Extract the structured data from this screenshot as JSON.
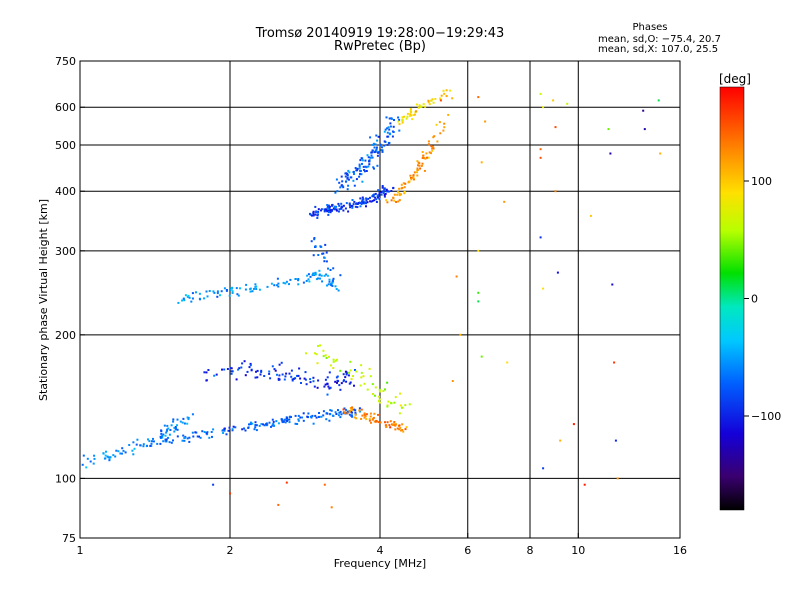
{
  "title_line1": "Tromsø 20140919 19:28:00−19:29:43",
  "title_line2": "RwPretec (Bp)",
  "legend": {
    "title": "Phases",
    "line1": "mean, sd,O: −75.4, 20.7",
    "line2": "mean, sd,X: 107.0, 25.5"
  },
  "colorbar": {
    "label": "[deg]",
    "ticks": [
      {
        "value": 100,
        "label": "100"
      },
      {
        "value": 0,
        "label": "0"
      },
      {
        "value": -100,
        "label": "−100"
      }
    ],
    "range": [
      -180,
      180
    ]
  },
  "chart_data": {
    "type": "scatter",
    "xlabel": "Frequency [MHz]",
    "ylabel": "Stationary phase Virtual Height [km]",
    "xscale": "log",
    "yscale": "log",
    "xlim": [
      1,
      16
    ],
    "ylim": [
      75,
      750
    ],
    "xticks": [
      {
        "value": 1,
        "label": "1"
      },
      {
        "value": 2,
        "label": "2"
      },
      {
        "value": 4,
        "label": "4"
      },
      {
        "value": 6,
        "label": "6"
      },
      {
        "value": 8,
        "label": "8"
      },
      {
        "value": 10,
        "label": "10"
      },
      {
        "value": 16,
        "label": "16"
      }
    ],
    "yticks": [
      {
        "value": 75,
        "label": "75"
      },
      {
        "value": 100,
        "label": "100"
      },
      {
        "value": 200,
        "label": "200"
      },
      {
        "value": 300,
        "label": "300"
      },
      {
        "value": 400,
        "label": "400"
      },
      {
        "value": 500,
        "label": "500"
      },
      {
        "value": 600,
        "label": "600"
      },
      {
        "value": 750,
        "label": "750"
      }
    ],
    "xgrid": [
      2,
      4,
      6,
      8,
      10
    ],
    "ygrid": [
      100,
      200,
      300,
      400,
      500,
      600
    ],
    "color_scale": "phase in degrees, rainbow from black (−180) through blue, cyan, green, yellow to red (180)",
    "traces": [
      {
        "name": "",
        "f": [
          1.0,
          1.2,
          1.45,
          1.65
        ],
        "h": [
          108,
          113,
          122,
          134
        ],
        "phase": -60,
        "spread_f": 0.03,
        "spread_h": 0.025,
        "n": 90
      },
      {
        "name": "",
        "f": [
          1.45,
          1.8,
          2.2,
          2.6,
          3.1,
          3.6
        ],
        "h": [
          120,
          124,
          128,
          132,
          136,
          138
        ],
        "phase": -75,
        "spread_f": 0.03,
        "spread_h": 0.02,
        "n": 170
      },
      {
        "name": "",
        "f": [
          1.75,
          2.1,
          2.6,
          3.0,
          3.5
        ],
        "h": [
          165,
          170,
          165,
          158,
          162
        ],
        "phase": -95,
        "spread_f": 0.03,
        "spread_h": 0.04,
        "n": 110
      },
      {
        "name": "",
        "f": [
          3.4,
          3.8,
          4.2,
          4.5
        ],
        "h": [
          140,
          134,
          130,
          128
        ],
        "phase": 130,
        "spread_f": 0.02,
        "spread_h": 0.02,
        "n": 70
      },
      {
        "name": "",
        "f": [
          2.8,
          3.2,
          3.6,
          4.0,
          4.5
        ],
        "h": [
          190,
          175,
          165,
          150,
          140
        ],
        "phase": 60,
        "spread_f": 0.04,
        "spread_h": 0.05,
        "n": 60
      },
      {
        "name": "",
        "f": [
          1.6,
          1.9,
          2.3,
          2.7,
          3.0,
          3.3
        ],
        "h": [
          238,
          245,
          252,
          260,
          268,
          250
        ],
        "phase": -55,
        "spread_f": 0.02,
        "spread_h": 0.02,
        "n": 110
      },
      {
        "name": "",
        "f": [
          2.9,
          3.1,
          3.3
        ],
        "h": [
          320,
          290,
          260
        ],
        "phase": -80,
        "spread_f": 0.02,
        "spread_h": 0.04,
        "n": 25
      },
      {
        "name": "",
        "f": [
          2.9,
          3.2,
          3.6,
          3.9,
          4.2
        ],
        "h": [
          358,
          368,
          375,
          388,
          405
        ],
        "phase": -90,
        "spread_f": 0.025,
        "spread_h": 0.02,
        "n": 150
      },
      {
        "name": "",
        "f": [
          3.3,
          3.7,
          4.0,
          4.3
        ],
        "h": [
          410,
          450,
          500,
          560
        ],
        "phase": -75,
        "spread_f": 0.03,
        "spread_h": 0.04,
        "n": 130
      },
      {
        "name": "",
        "f": [
          4.2,
          4.6,
          5.0,
          5.4
        ],
        "h": [
          380,
          420,
          480,
          560
        ],
        "phase": 120,
        "spread_f": 0.02,
        "spread_h": 0.03,
        "n": 80
      },
      {
        "name": "",
        "f": [
          4.4,
          4.9,
          5.5
        ],
        "h": [
          560,
          610,
          640
        ],
        "phase": 90,
        "spread_f": 0.02,
        "spread_h": 0.02,
        "n": 50
      }
    ],
    "scattered_points": [
      {
        "f": 5.3,
        "h": 620,
        "phase": 150
      },
      {
        "f": 6.3,
        "h": 630,
        "phase": 140
      },
      {
        "f": 6.5,
        "h": 560,
        "phase": 120
      },
      {
        "f": 6.4,
        "h": 460,
        "phase": 110
      },
      {
        "f": 6.3,
        "h": 300,
        "phase": 90
      },
      {
        "f": 6.3,
        "h": 245,
        "phase": 30
      },
      {
        "f": 6.3,
        "h": 235,
        "phase": 10
      },
      {
        "f": 6.4,
        "h": 180,
        "phase": 40
      },
      {
        "f": 7.1,
        "h": 380,
        "phase": 120
      },
      {
        "f": 7.2,
        "h": 175,
        "phase": 90
      },
      {
        "f": 8.4,
        "h": 640,
        "phase": 60
      },
      {
        "f": 8.5,
        "h": 600,
        "phase": 80
      },
      {
        "f": 8.4,
        "h": 490,
        "phase": 140
      },
      {
        "f": 8.4,
        "h": 470,
        "phase": 150
      },
      {
        "f": 8.4,
        "h": 320,
        "phase": -95
      },
      {
        "f": 8.5,
        "h": 250,
        "phase": 90
      },
      {
        "f": 8.5,
        "h": 105,
        "phase": -90
      },
      {
        "f": 8.9,
        "h": 620,
        "phase": 100
      },
      {
        "f": 9.0,
        "h": 545,
        "phase": 150
      },
      {
        "f": 9.0,
        "h": 400,
        "phase": 130
      },
      {
        "f": 9.1,
        "h": 270,
        "phase": -110
      },
      {
        "f": 9.2,
        "h": 120,
        "phase": 110
      },
      {
        "f": 9.5,
        "h": 610,
        "phase": 60
      },
      {
        "f": 9.8,
        "h": 130,
        "phase": 170
      },
      {
        "f": 10.3,
        "h": 97,
        "phase": 170
      },
      {
        "f": 10.6,
        "h": 355,
        "phase": 100
      },
      {
        "f": 11.5,
        "h": 540,
        "phase": 40
      },
      {
        "f": 11.6,
        "h": 480,
        "phase": -130
      },
      {
        "f": 11.7,
        "h": 255,
        "phase": -110
      },
      {
        "f": 11.8,
        "h": 175,
        "phase": 160
      },
      {
        "f": 11.9,
        "h": 120,
        "phase": -100
      },
      {
        "f": 13.6,
        "h": 540,
        "phase": -130
      },
      {
        "f": 13.5,
        "h": 590,
        "phase": -140
      },
      {
        "f": 14.5,
        "h": 620,
        "phase": 10
      },
      {
        "f": 14.6,
        "h": 480,
        "phase": 110
      },
      {
        "f": 12.0,
        "h": 100,
        "phase": 120
      },
      {
        "f": 3.2,
        "h": 87,
        "phase": 130
      },
      {
        "f": 2.5,
        "h": 88,
        "phase": 140
      },
      {
        "f": 2.0,
        "h": 93,
        "phase": 160
      },
      {
        "f": 1.85,
        "h": 97,
        "phase": -90
      },
      {
        "f": 3.1,
        "h": 97,
        "phase": 140
      },
      {
        "f": 2.6,
        "h": 98,
        "phase": 160
      },
      {
        "f": 5.6,
        "h": 160,
        "phase": 120
      },
      {
        "f": 5.8,
        "h": 200,
        "phase": 110
      },
      {
        "f": 5.7,
        "h": 265,
        "phase": 130
      }
    ]
  }
}
